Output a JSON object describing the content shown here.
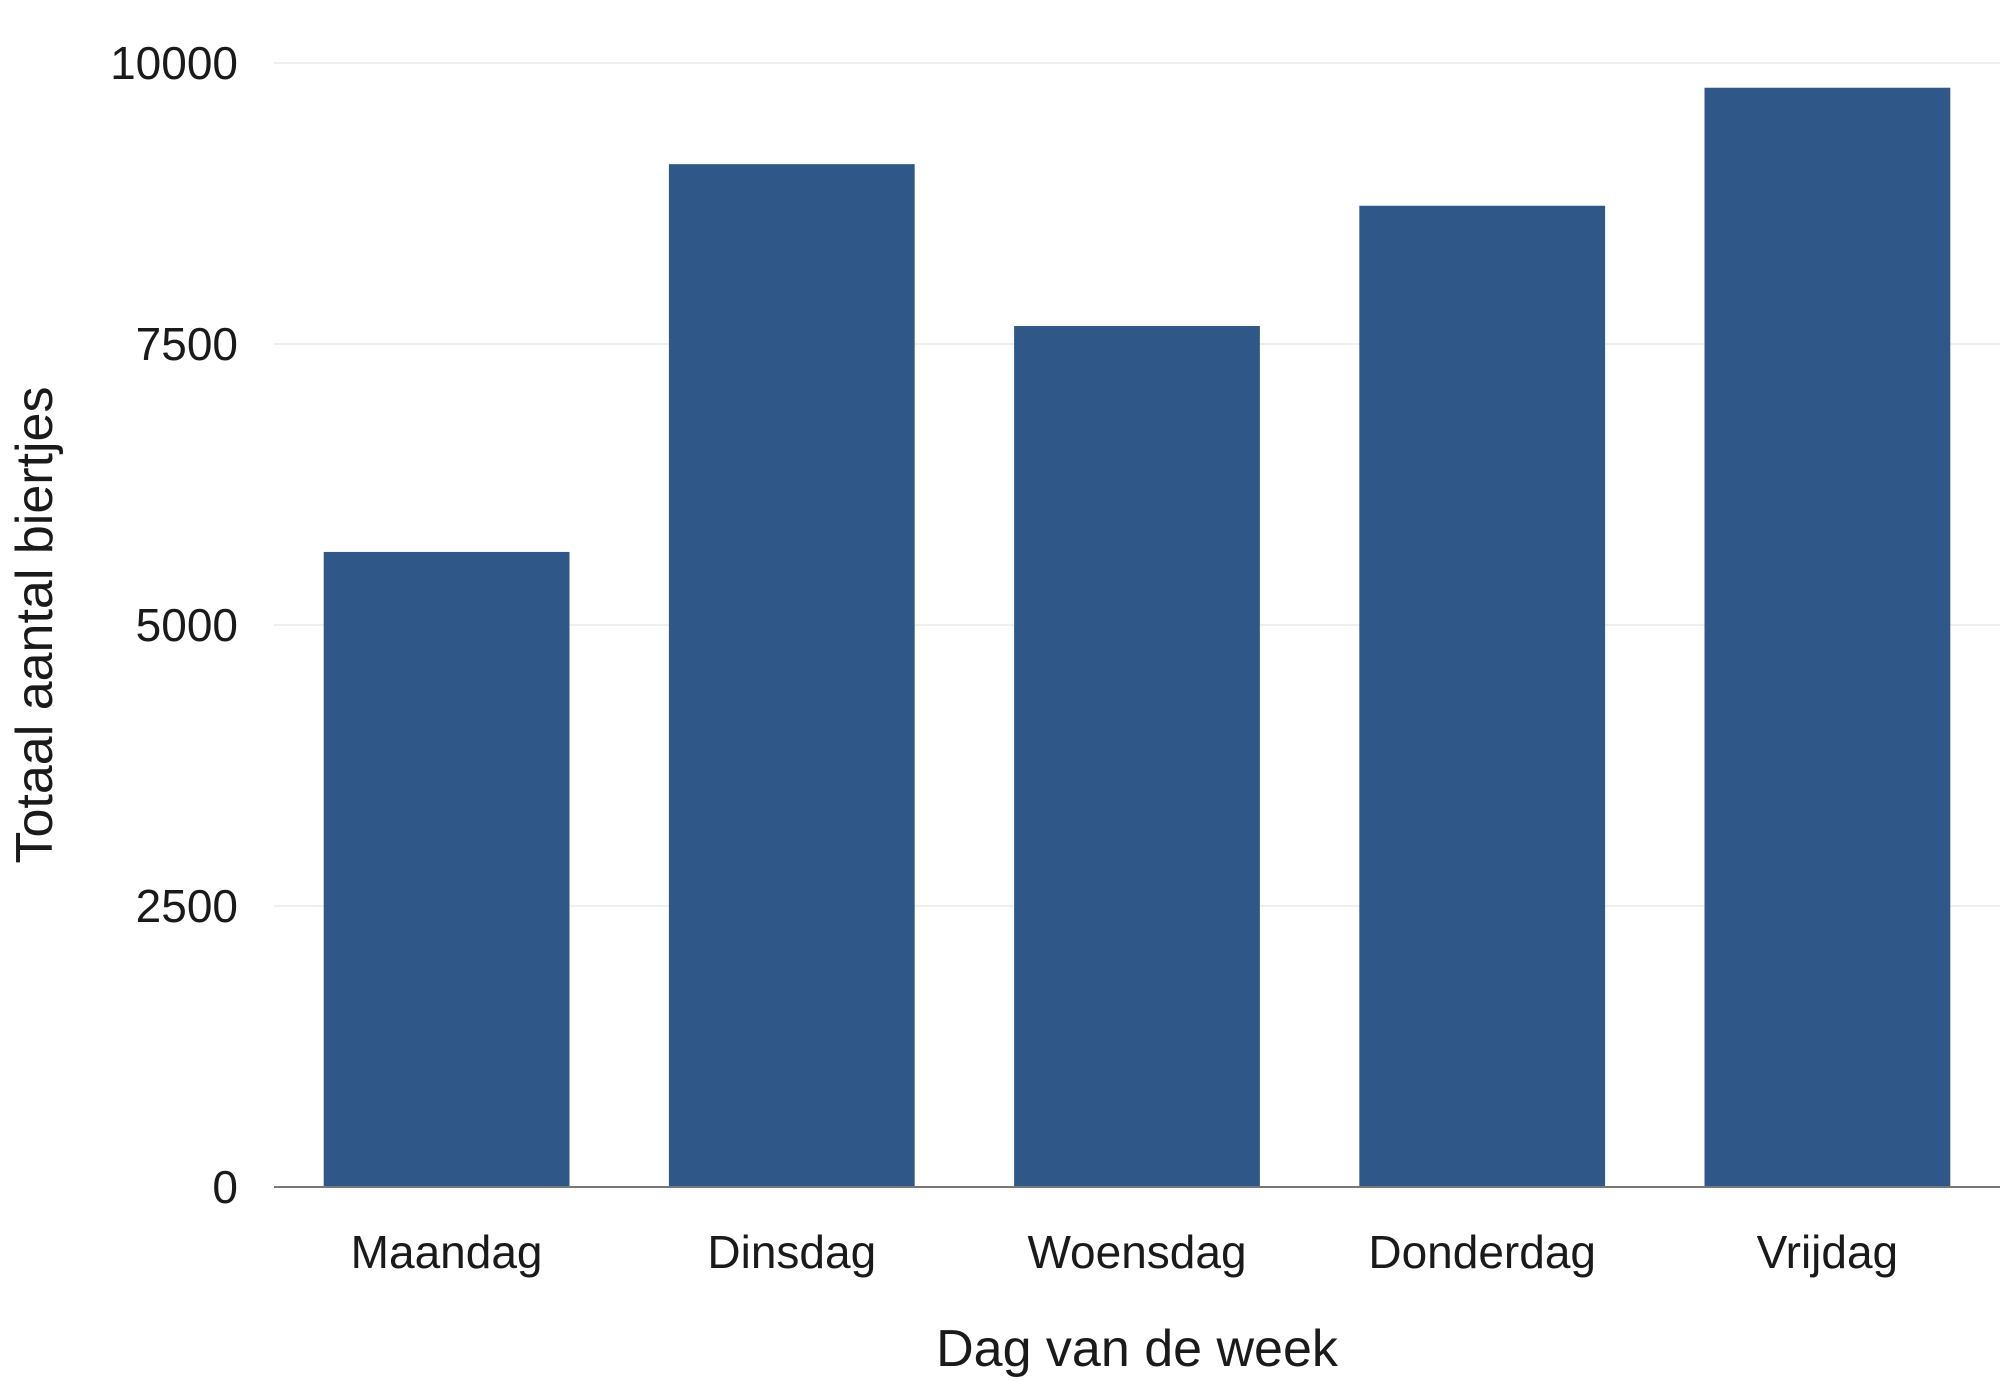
{
  "chart_data": {
    "type": "bar",
    "title": "",
    "xlabel": "Dag van de week",
    "ylabel": "Totaal aantal biertjes",
    "categories": [
      "Maandag",
      "Dinsdag",
      "Woensdag",
      "Donderdag",
      "Vrijdag"
    ],
    "values": [
      5650,
      9100,
      7660,
      8730,
      9780
    ],
    "ylim": [
      0,
      10000
    ],
    "yticks": [
      0,
      2500,
      5000,
      7500,
      10000
    ],
    "grid": true,
    "bar_color": "#2f5889",
    "grid_color": "#efefef",
    "axis_color": "#777777"
  }
}
